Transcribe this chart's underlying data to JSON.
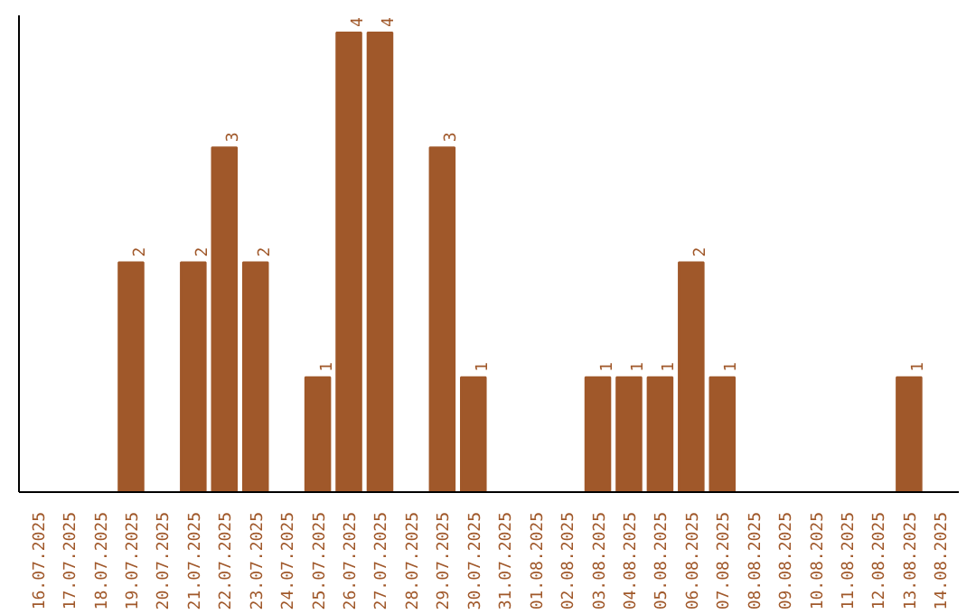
{
  "chart_data": {
    "type": "bar",
    "categories": [
      "16.07.2025",
      "17.07.2025",
      "18.07.2025",
      "19.07.2025",
      "20.07.2025",
      "21.07.2025",
      "22.07.2025",
      "23.07.2025",
      "24.07.2025",
      "25.07.2025",
      "26.07.2025",
      "27.07.2025",
      "28.07.2025",
      "29.07.2025",
      "30.07.2025",
      "31.07.2025",
      "01.08.2025",
      "02.08.2025",
      "03.08.2025",
      "04.08.2025",
      "05.08.2025",
      "06.08.2025",
      "07.08.2025",
      "08.08.2025",
      "09.08.2025",
      "10.08.2025",
      "11.08.2025",
      "12.08.2025",
      "13.08.2025",
      "14.08.2025"
    ],
    "values": [
      0,
      0,
      0,
      2,
      0,
      2,
      3,
      2,
      0,
      1,
      4,
      4,
      0,
      3,
      1,
      0,
      0,
      0,
      1,
      1,
      1,
      2,
      1,
      0,
      0,
      0,
      0,
      0,
      1,
      0
    ],
    "value_labels": [
      null,
      null,
      null,
      "2",
      null,
      "2",
      "3",
      "2",
      null,
      "1",
      "4",
      "4",
      null,
      "3",
      "1",
      null,
      null,
      null,
      "1",
      "1",
      "1",
      "2",
      "1",
      null,
      null,
      null,
      null,
      null,
      "1",
      null
    ],
    "color": "#a0582a",
    "ylim": [
      0,
      4.15
    ],
    "tick_labels": "x",
    "grid": false
  }
}
